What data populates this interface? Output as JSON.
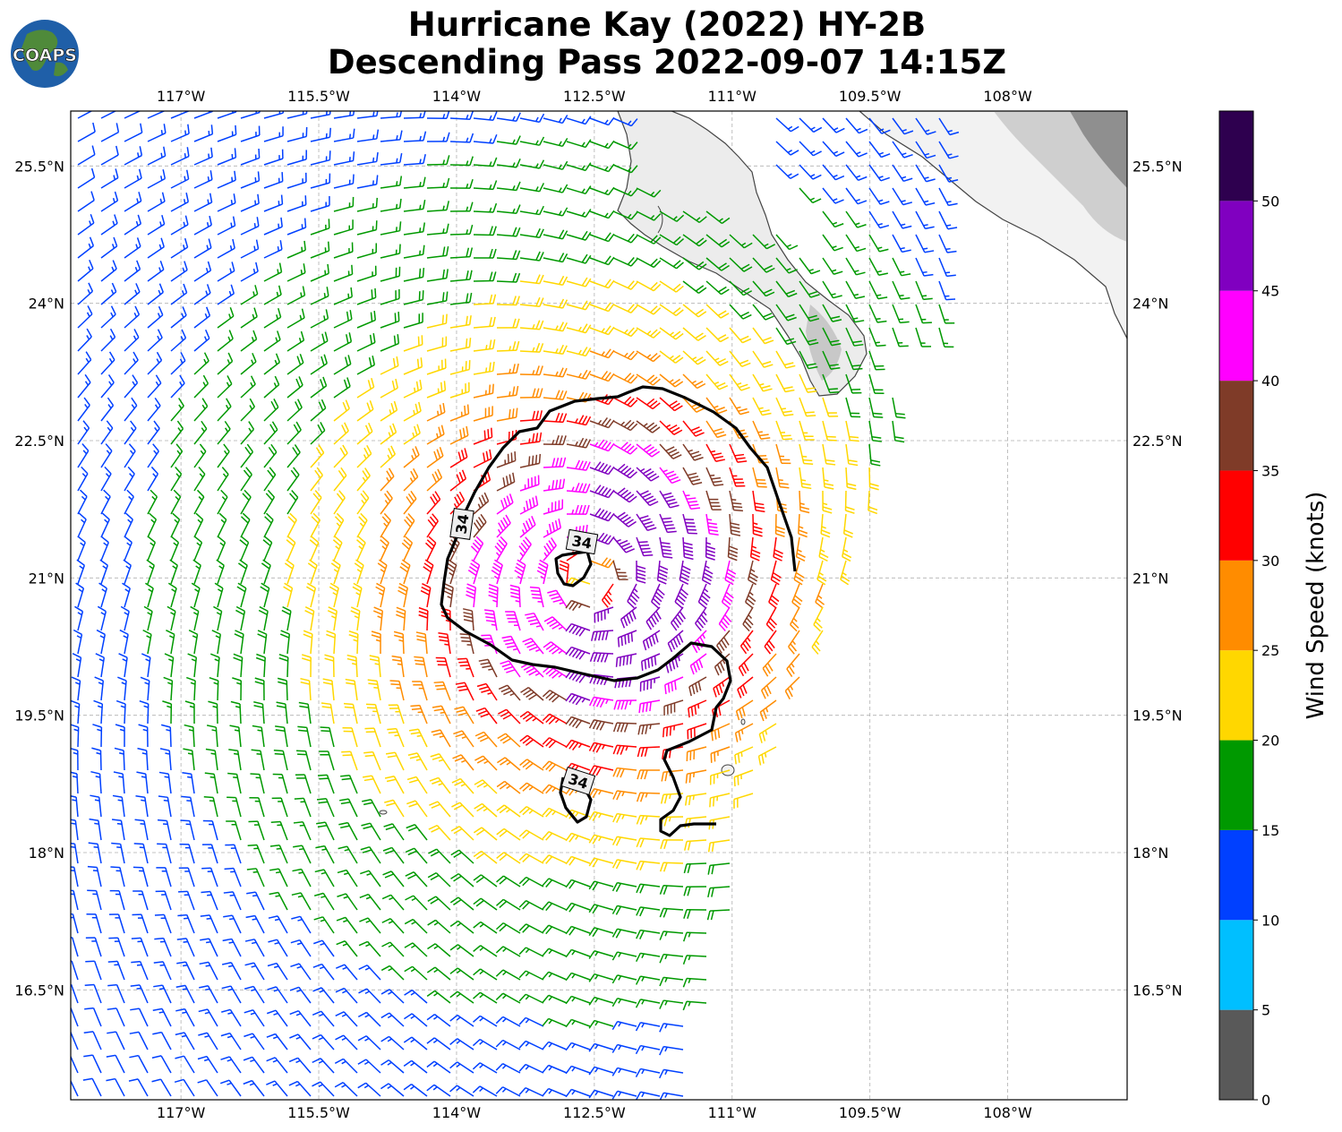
{
  "title": {
    "line1": "Hurricane Kay (2022) HY-2B",
    "line2": "Descending Pass 2022-09-07 14:15Z"
  },
  "logo": {
    "text": "COAPS",
    "icon": "globe-logo"
  },
  "axes": {
    "lon_labels": [
      "117°W",
      "115.5°W",
      "114°W",
      "112.5°W",
      "111°W",
      "109.5°W",
      "108°W"
    ],
    "lat_labels": [
      "25.5°N",
      "24°N",
      "22.5°N",
      "21°N",
      "19.5°N",
      "18°N",
      "16.5°N"
    ],
    "lon_range": [
      -118.2,
      -106.7
    ],
    "lat_range": [
      15.3,
      26.1
    ]
  },
  "colorbar": {
    "label": "Wind Speed (knots)",
    "ticks": [
      "0",
      "5",
      "10",
      "15",
      "20",
      "25",
      "30",
      "35",
      "40",
      "45",
      "50"
    ],
    "colors": [
      "#595959",
      "#00bfff",
      "#0040ff",
      "#009900",
      "#ffd700",
      "#ff8c00",
      "#ff0000",
      "#7f3b28",
      "#ff00ff",
      "#8000c0",
      "#2e004f"
    ]
  },
  "contour": {
    "label": "34",
    "level_knots": 34
  },
  "storm_center": {
    "lon": -112.55,
    "lat": 21.0
  }
}
